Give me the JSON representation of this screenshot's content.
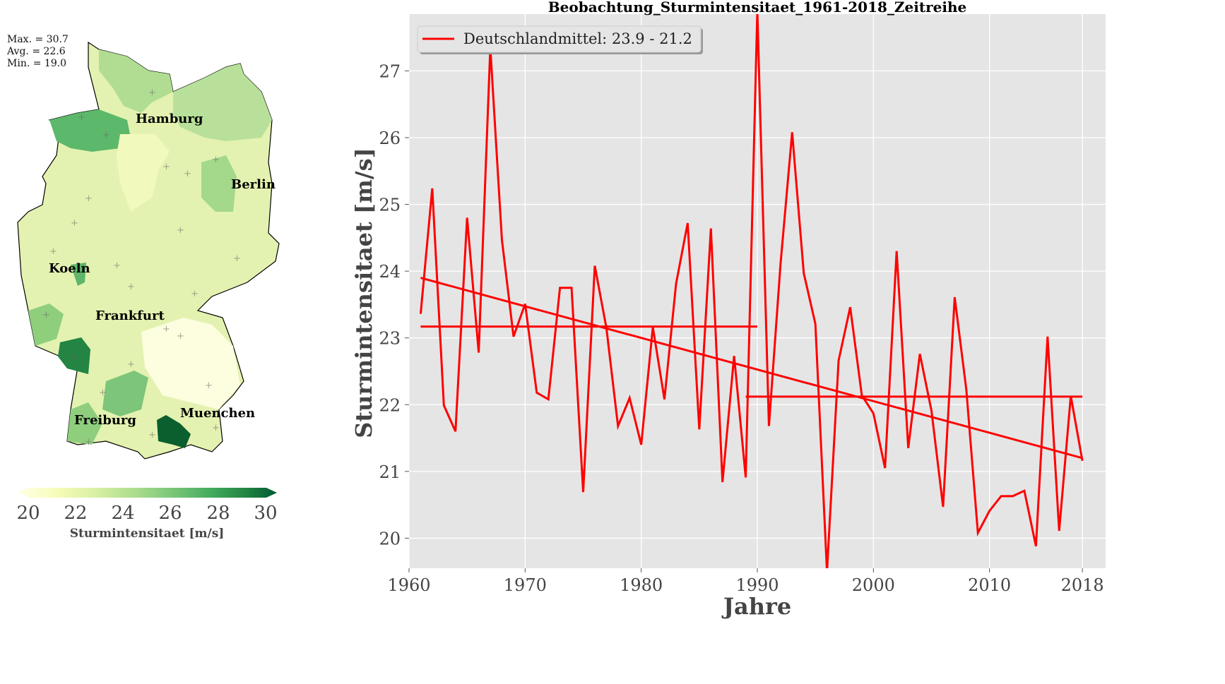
{
  "map": {
    "stats": [
      "Max. = 30.7",
      "Avg. = 22.6",
      "Min. = 19.0"
    ],
    "cities": [
      "Hamburg",
      "Berlin",
      "Koeln",
      "Frankfurt",
      "Freiburg",
      "Muenchen"
    ],
    "colorbar": {
      "ticks": [
        "20",
        "22",
        "24",
        "26",
        "28",
        "30"
      ],
      "label": "Sturmintensitaet [m/s]",
      "range": [
        20,
        30
      ],
      "colors": [
        "#ffffe5",
        "#f7fcb9",
        "#d9f0a3",
        "#addd8e",
        "#78c679",
        "#41ab5d",
        "#238443",
        "#005a32"
      ]
    }
  },
  "chart_data": {
    "type": "line",
    "title": "Beobachtung_Sturmintensitaet_1961-2018_Zeitreihe",
    "xlabel": "Jahre",
    "ylabel": "Sturmintensitaet [m/s]",
    "xlim": [
      1960,
      2020
    ],
    "ylim": [
      19.55,
      27.85
    ],
    "xticks": [
      1960,
      1970,
      1980,
      1990,
      2000,
      2010,
      2018
    ],
    "yticks": [
      20,
      21,
      22,
      23,
      24,
      25,
      26,
      27
    ],
    "grid": true,
    "legend": {
      "placement": "top-left",
      "entries": [
        "Deutschlandmittel: 23.9 - 21.2"
      ]
    },
    "color": "#ff0000",
    "x": [
      1961,
      1962,
      1963,
      1964,
      1965,
      1966,
      1967,
      1968,
      1969,
      1970,
      1971,
      1972,
      1973,
      1974,
      1975,
      1976,
      1977,
      1978,
      1979,
      1980,
      1981,
      1982,
      1983,
      1984,
      1985,
      1986,
      1987,
      1988,
      1989,
      1990,
      1991,
      1992,
      1993,
      1994,
      1995,
      1996,
      1997,
      1998,
      1999,
      2000,
      2001,
      2002,
      2003,
      2004,
      2005,
      2006,
      2007,
      2008,
      2009,
      2010,
      2011,
      2012,
      2013,
      2014,
      2015,
      2016,
      2017,
      2018
    ],
    "series": [
      {
        "name": "Deutschlandmittel",
        "values": [
          23.36,
          25.24,
          21.99,
          21.6,
          24.8,
          22.78,
          27.35,
          24.47,
          23.02,
          23.51,
          22.18,
          22.08,
          23.75,
          23.75,
          20.69,
          24.08,
          23.15,
          21.68,
          22.1,
          21.4,
          23.16,
          22.08,
          23.81,
          24.72,
          21.63,
          24.64,
          20.84,
          22.73,
          20.91,
          27.9,
          21.68,
          24.11,
          26.08,
          23.97,
          23.21,
          19.5,
          22.66,
          23.46,
          22.14,
          21.87,
          21.05,
          24.3,
          21.35,
          22.76,
          21.91,
          20.47,
          23.61,
          22.23,
          20.08,
          20.41,
          20.63,
          20.63,
          20.71,
          19.88,
          23.02,
          20.11,
          22.13,
          21.16
        ]
      }
    ],
    "period_means": [
      {
        "from": 1961,
        "to": 1990,
        "value": 23.17
      },
      {
        "from": 1989,
        "to": 2018,
        "value": 22.12
      }
    ],
    "trend": {
      "from": 1961,
      "to": 2018,
      "start": 23.9,
      "end": 21.2
    }
  }
}
